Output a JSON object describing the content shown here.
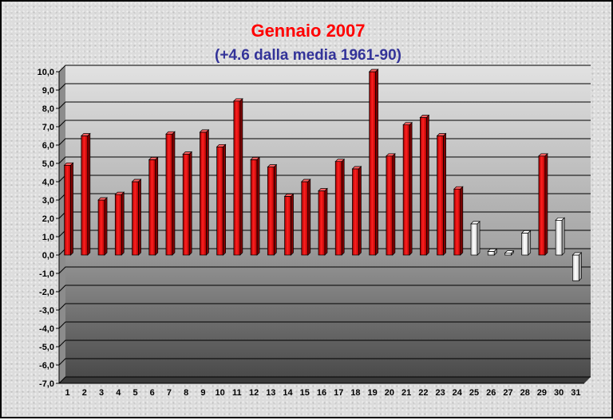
{
  "chart_data": {
    "type": "bar",
    "title": "Gennaio 2007",
    "subtitle": "(+4.6 dalla media 1961-90)",
    "colors": {
      "title": "#ff0000",
      "subtitle": "#333399",
      "bar_positive": "#ee0000",
      "bar_low": "#ffffff",
      "bar_negative": "#ffffff"
    },
    "ylim": [
      -7,
      10
    ],
    "ytick_step": 1,
    "categories": [
      "1",
      "2",
      "3",
      "4",
      "5",
      "6",
      "7",
      "8",
      "9",
      "10",
      "11",
      "12",
      "13",
      "14",
      "15",
      "16",
      "17",
      "18",
      "19",
      "20",
      "21",
      "22",
      "23",
      "24",
      "25",
      "26",
      "27",
      "28",
      "29",
      "30",
      "31"
    ],
    "values": [
      4.9,
      6.5,
      3.0,
      3.3,
      4.0,
      5.2,
      6.6,
      5.5,
      6.7,
      5.9,
      8.4,
      5.2,
      4.8,
      3.2,
      4.0,
      3.5,
      5.1,
      4.7,
      10.0,
      5.4,
      7.1,
      7.5,
      6.5,
      3.6,
      1.7,
      0.2,
      0.1,
      1.2,
      5.4,
      1.9,
      -1.4
    ],
    "bar_colors": [
      "red",
      "red",
      "red",
      "red",
      "red",
      "red",
      "red",
      "red",
      "red",
      "red",
      "red",
      "red",
      "red",
      "red",
      "red",
      "red",
      "red",
      "red",
      "red",
      "red",
      "red",
      "red",
      "red",
      "red",
      "white",
      "white",
      "white",
      "white",
      "red",
      "white",
      "white"
    ],
    "grid": true,
    "legend": "none"
  }
}
